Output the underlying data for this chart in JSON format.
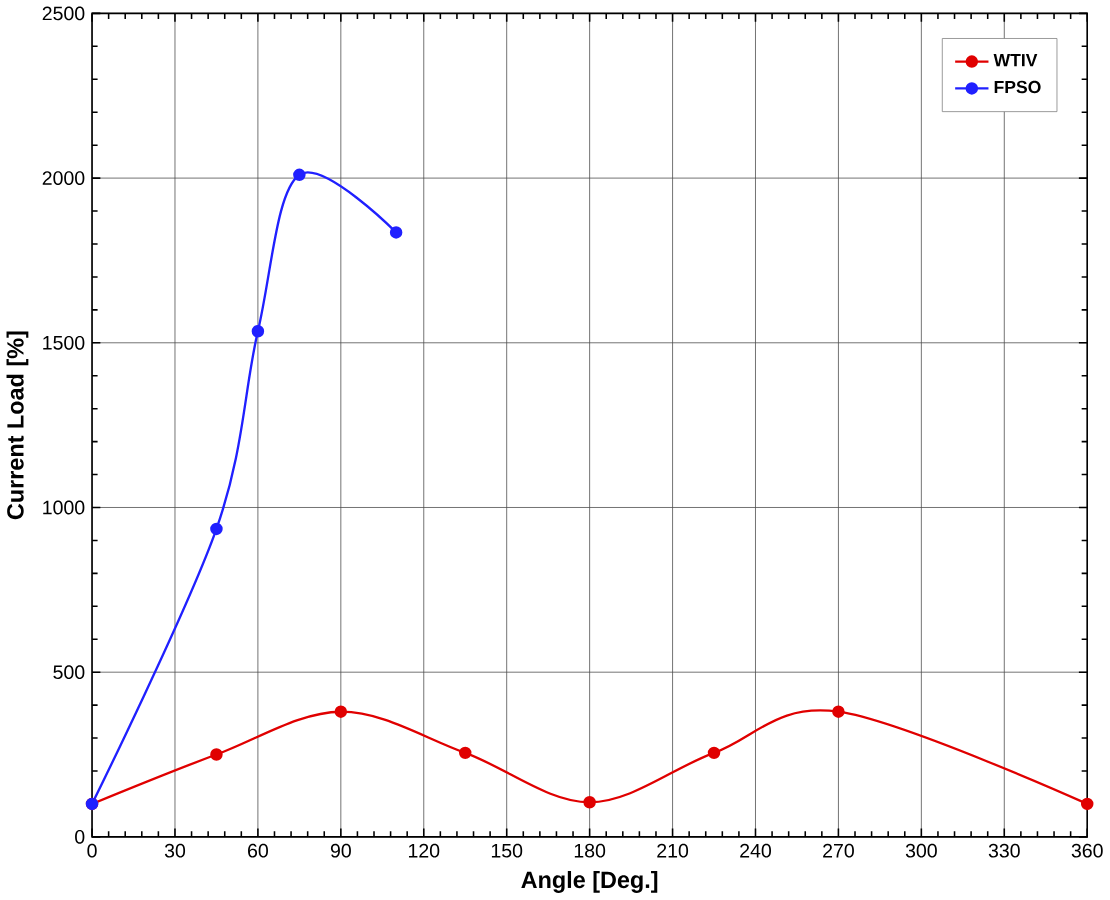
{
  "chart_data": {
    "type": "line",
    "xlabel": "Angle [Deg.]",
    "ylabel": "Current Load [%]",
    "xlim": [
      0,
      360
    ],
    "ylim": [
      0,
      2500
    ],
    "xticks": [
      0,
      30,
      60,
      90,
      120,
      150,
      180,
      210,
      240,
      270,
      300,
      330,
      360
    ],
    "yticks": [
      0,
      500,
      1000,
      1500,
      2000,
      2500
    ],
    "grid": true,
    "legend": "top right",
    "marker": "circle",
    "line_style": "solid",
    "series": [
      {
        "name": "WTIV",
        "color": "#e00000",
        "x": [
          0,
          45,
          90,
          135,
          180,
          225,
          270,
          360
        ],
        "values": [
          100,
          250,
          380,
          255,
          105,
          255,
          380,
          100
        ]
      },
      {
        "name": "FPSO",
        "color": "#2020ff",
        "x": [
          0,
          45,
          60,
          75,
          110
        ],
        "values": [
          100,
          935,
          1535,
          2010,
          1835
        ]
      }
    ]
  }
}
